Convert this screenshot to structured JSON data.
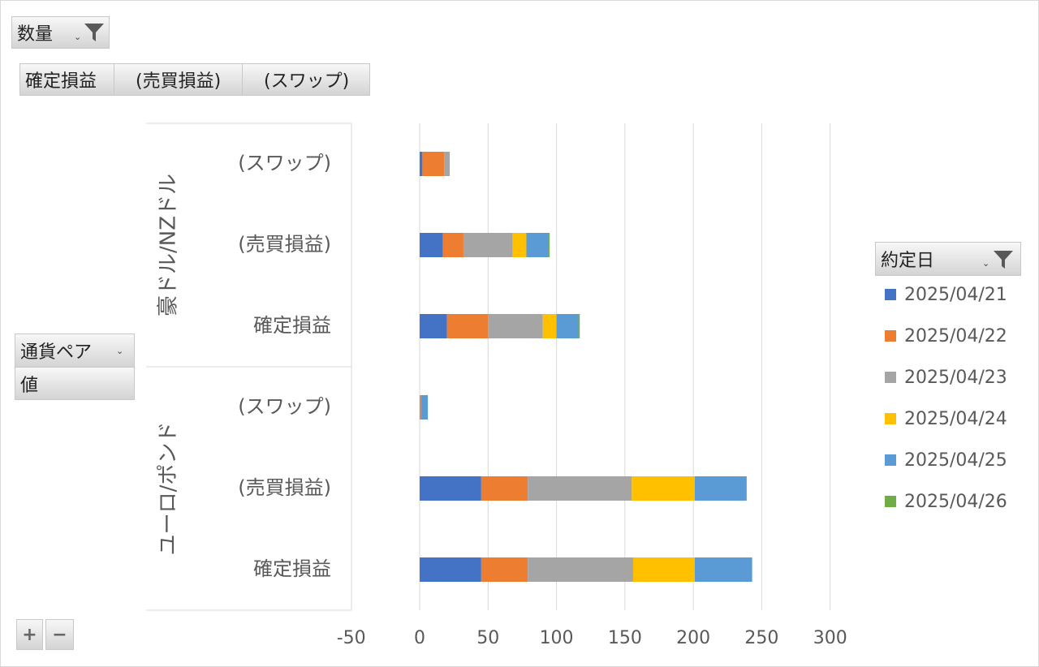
{
  "filters": {
    "value_field": "数量",
    "column_fields": [
      "確定損益",
      "(売買損益)",
      "(スワップ)"
    ],
    "row_field": "通貨ペア",
    "values_field": "値",
    "legend_field": "約定日",
    "zoom_in": "+",
    "zoom_out": "−"
  },
  "colors": {
    "2025/04/21": "#4472c4",
    "2025/04/22": "#ed7d31",
    "2025/04/23": "#a5a5a5",
    "2025/04/24": "#ffc000",
    "2025/04/25": "#5b9bd5",
    "2025/04/26": "#70ad47"
  },
  "chart_data": {
    "type": "bar",
    "orientation": "horizontal",
    "stacked": true,
    "xlim": [
      -50,
      300
    ],
    "x_ticks": [
      "-50",
      "0",
      "50",
      "100",
      "150",
      "200",
      "250",
      "300"
    ],
    "grid": true,
    "legend_position": "right",
    "groups": [
      {
        "label": "豪ドル/NZドル",
        "categories": [
          "(スワップ)",
          "(売買損益)",
          "確定損益"
        ]
      },
      {
        "label": "ユーロ/ポンド",
        "categories": [
          "(スワップ)",
          "(売買損益)",
          "確定損益"
        ]
      }
    ],
    "series": [
      {
        "name": "2025/04/21",
        "values": [
          2,
          17,
          20,
          0,
          45,
          45
        ]
      },
      {
        "name": "2025/04/22",
        "values": [
          16,
          15,
          30,
          1,
          34,
          34
        ]
      },
      {
        "name": "2025/04/23",
        "values": [
          4,
          36,
          40,
          0,
          76,
          77
        ]
      },
      {
        "name": "2025/04/24",
        "values": [
          0,
          10,
          10,
          0,
          46,
          45
        ]
      },
      {
        "name": "2025/04/25",
        "values": [
          0,
          16,
          16,
          5,
          38,
          42
        ]
      },
      {
        "name": "2025/04/26",
        "values": [
          0,
          1,
          1,
          0,
          0,
          0
        ]
      }
    ]
  }
}
